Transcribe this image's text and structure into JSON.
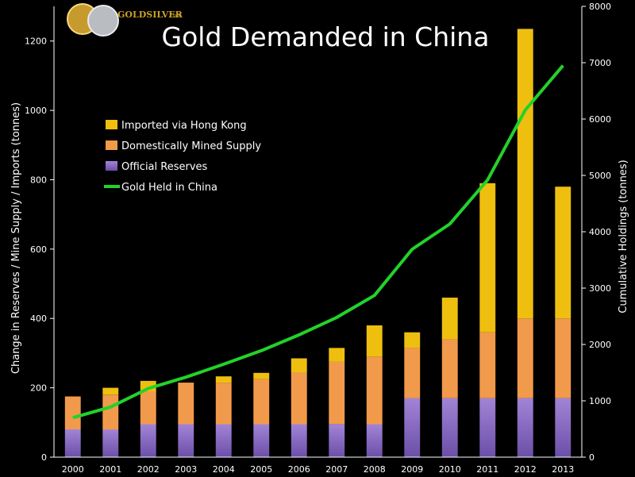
{
  "logo": {
    "brand": "GOLDSILVER",
    "suffix": ".com"
  },
  "colors": {
    "background": "#000000",
    "imported": "#eebf0f",
    "mined": "#f29a4b",
    "reserves": "#a284d6",
    "line": "#22d22a",
    "axis": "#ffffff"
  },
  "chart_data": {
    "type": "bar",
    "title": "Gold Demanded in China",
    "xlabel": "",
    "ylabel": "Change in Reserves / Mine Supply / Imports (tonnes)",
    "y2label": "Cumulative Holdings (tonnes)",
    "ylim": [
      0,
      1300
    ],
    "y2lim": [
      0,
      8000
    ],
    "yticks": [
      0,
      200,
      400,
      600,
      800,
      1000,
      1200
    ],
    "y2ticks": [
      0,
      1000,
      2000,
      3000,
      4000,
      5000,
      6000,
      7000,
      8000
    ],
    "categories": [
      "2000",
      "2001",
      "2002",
      "2003",
      "2004",
      "2005",
      "2006",
      "2007",
      "2008",
      "2009",
      "2010",
      "2011",
      "2012",
      "2013"
    ],
    "stacked": true,
    "series": [
      {
        "name": "Official Reserves",
        "color_key": "reserves",
        "values": [
          80,
          80,
          95,
          95,
          95,
          95,
          95,
          95,
          95,
          170,
          170,
          170,
          170,
          170
        ]
      },
      {
        "name": "Domestically Mined Supply",
        "color_key": "mined",
        "values": [
          95,
          100,
          95,
          120,
          120,
          130,
          150,
          180,
          195,
          145,
          170,
          190,
          230,
          230
        ]
      },
      {
        "name": "Imported via Hong Kong",
        "color_key": "imported",
        "values": [
          0,
          20,
          30,
          0,
          18,
          18,
          40,
          40,
          90,
          45,
          120,
          430,
          835,
          380
        ]
      }
    ],
    "line": {
      "name": "Gold Held in China",
      "axis": "right",
      "values": [
        700,
        890,
        1220,
        1420,
        1650,
        1890,
        2170,
        2480,
        2870,
        3690,
        4140,
        4920,
        6160,
        6950
      ]
    },
    "legend": [
      "Imported via Hong Kong",
      "Domestically Mined Supply",
      "Official Reserves",
      "Gold Held in China"
    ],
    "legend_position": "upper-left"
  }
}
